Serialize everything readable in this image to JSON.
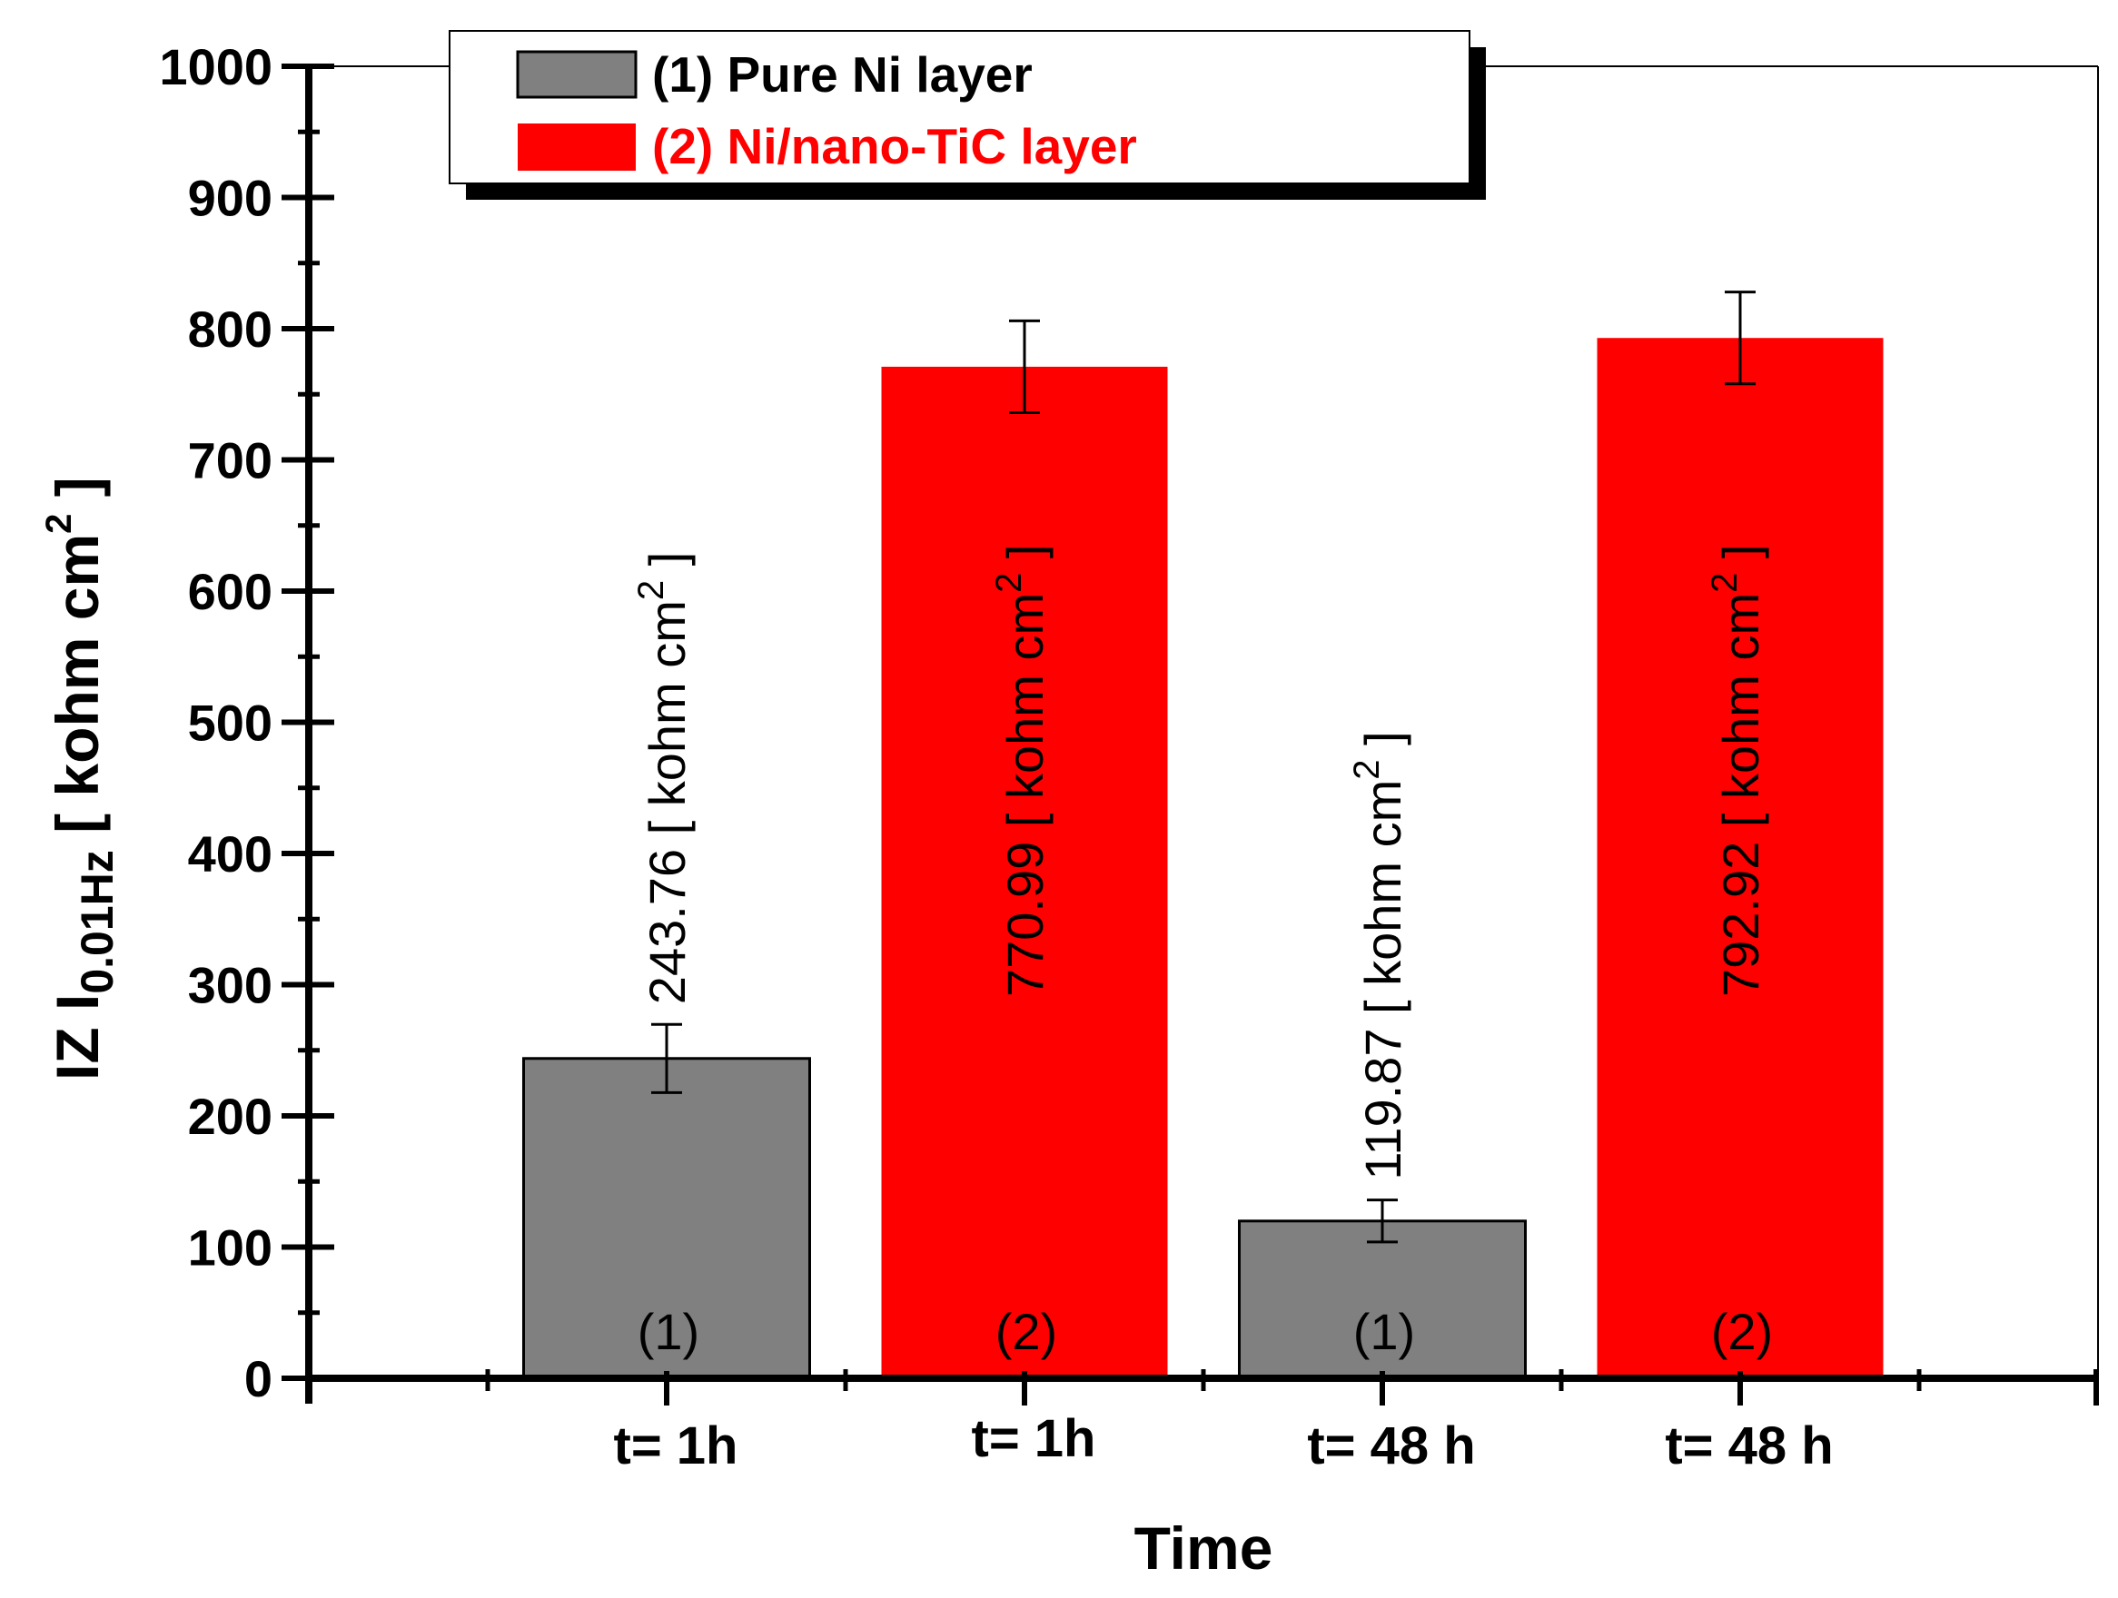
{
  "chart_data": {
    "type": "bar",
    "xlabel": "Time",
    "ylabel": {
      "main": "IZ I",
      "sub": "0.01Hz",
      "unit_open": "[ kohm cm",
      "unit_sup": "2",
      "unit_close": " ]"
    },
    "ylim": [
      0,
      1000
    ],
    "yticks": [
      "0",
      "100",
      "200",
      "300",
      "400",
      "500",
      "600",
      "700",
      "800",
      "900",
      "1000"
    ],
    "series": [
      {
        "name": "(1) Pure Ni layer",
        "color": "#808080"
      },
      {
        "name": "(2) Ni/nano-TiC layer",
        "color": "#ff0000"
      }
    ],
    "bars": [
      {
        "category": "t= 1h",
        "series_index": 0,
        "value": 243.76,
        "error": 26,
        "number": "(1)",
        "label_main": "243.76 [ kohm cm",
        "label_sup": "2",
        "label_close": " ]"
      },
      {
        "category": "t= 1h",
        "series_index": 1,
        "value": 770.99,
        "error": 35,
        "number": "(2)",
        "label_main": "770.99 [ kohm cm",
        "label_sup": "2",
        "label_close": " ]"
      },
      {
        "category": "t= 48 h",
        "series_index": 0,
        "value": 119.87,
        "error": 16,
        "number": "(1)",
        "label_main": "119.87 [ kohm cm",
        "label_sup": "2",
        "label_close": " ]"
      },
      {
        "category": "t= 48 h",
        "series_index": 1,
        "value": 792.92,
        "error": 35,
        "number": "(2)",
        "label_main": "792.92 [ kohm cm",
        "label_sup": "2",
        "label_close": " ]"
      }
    ],
    "legend_position": "top-left",
    "grid": false
  }
}
